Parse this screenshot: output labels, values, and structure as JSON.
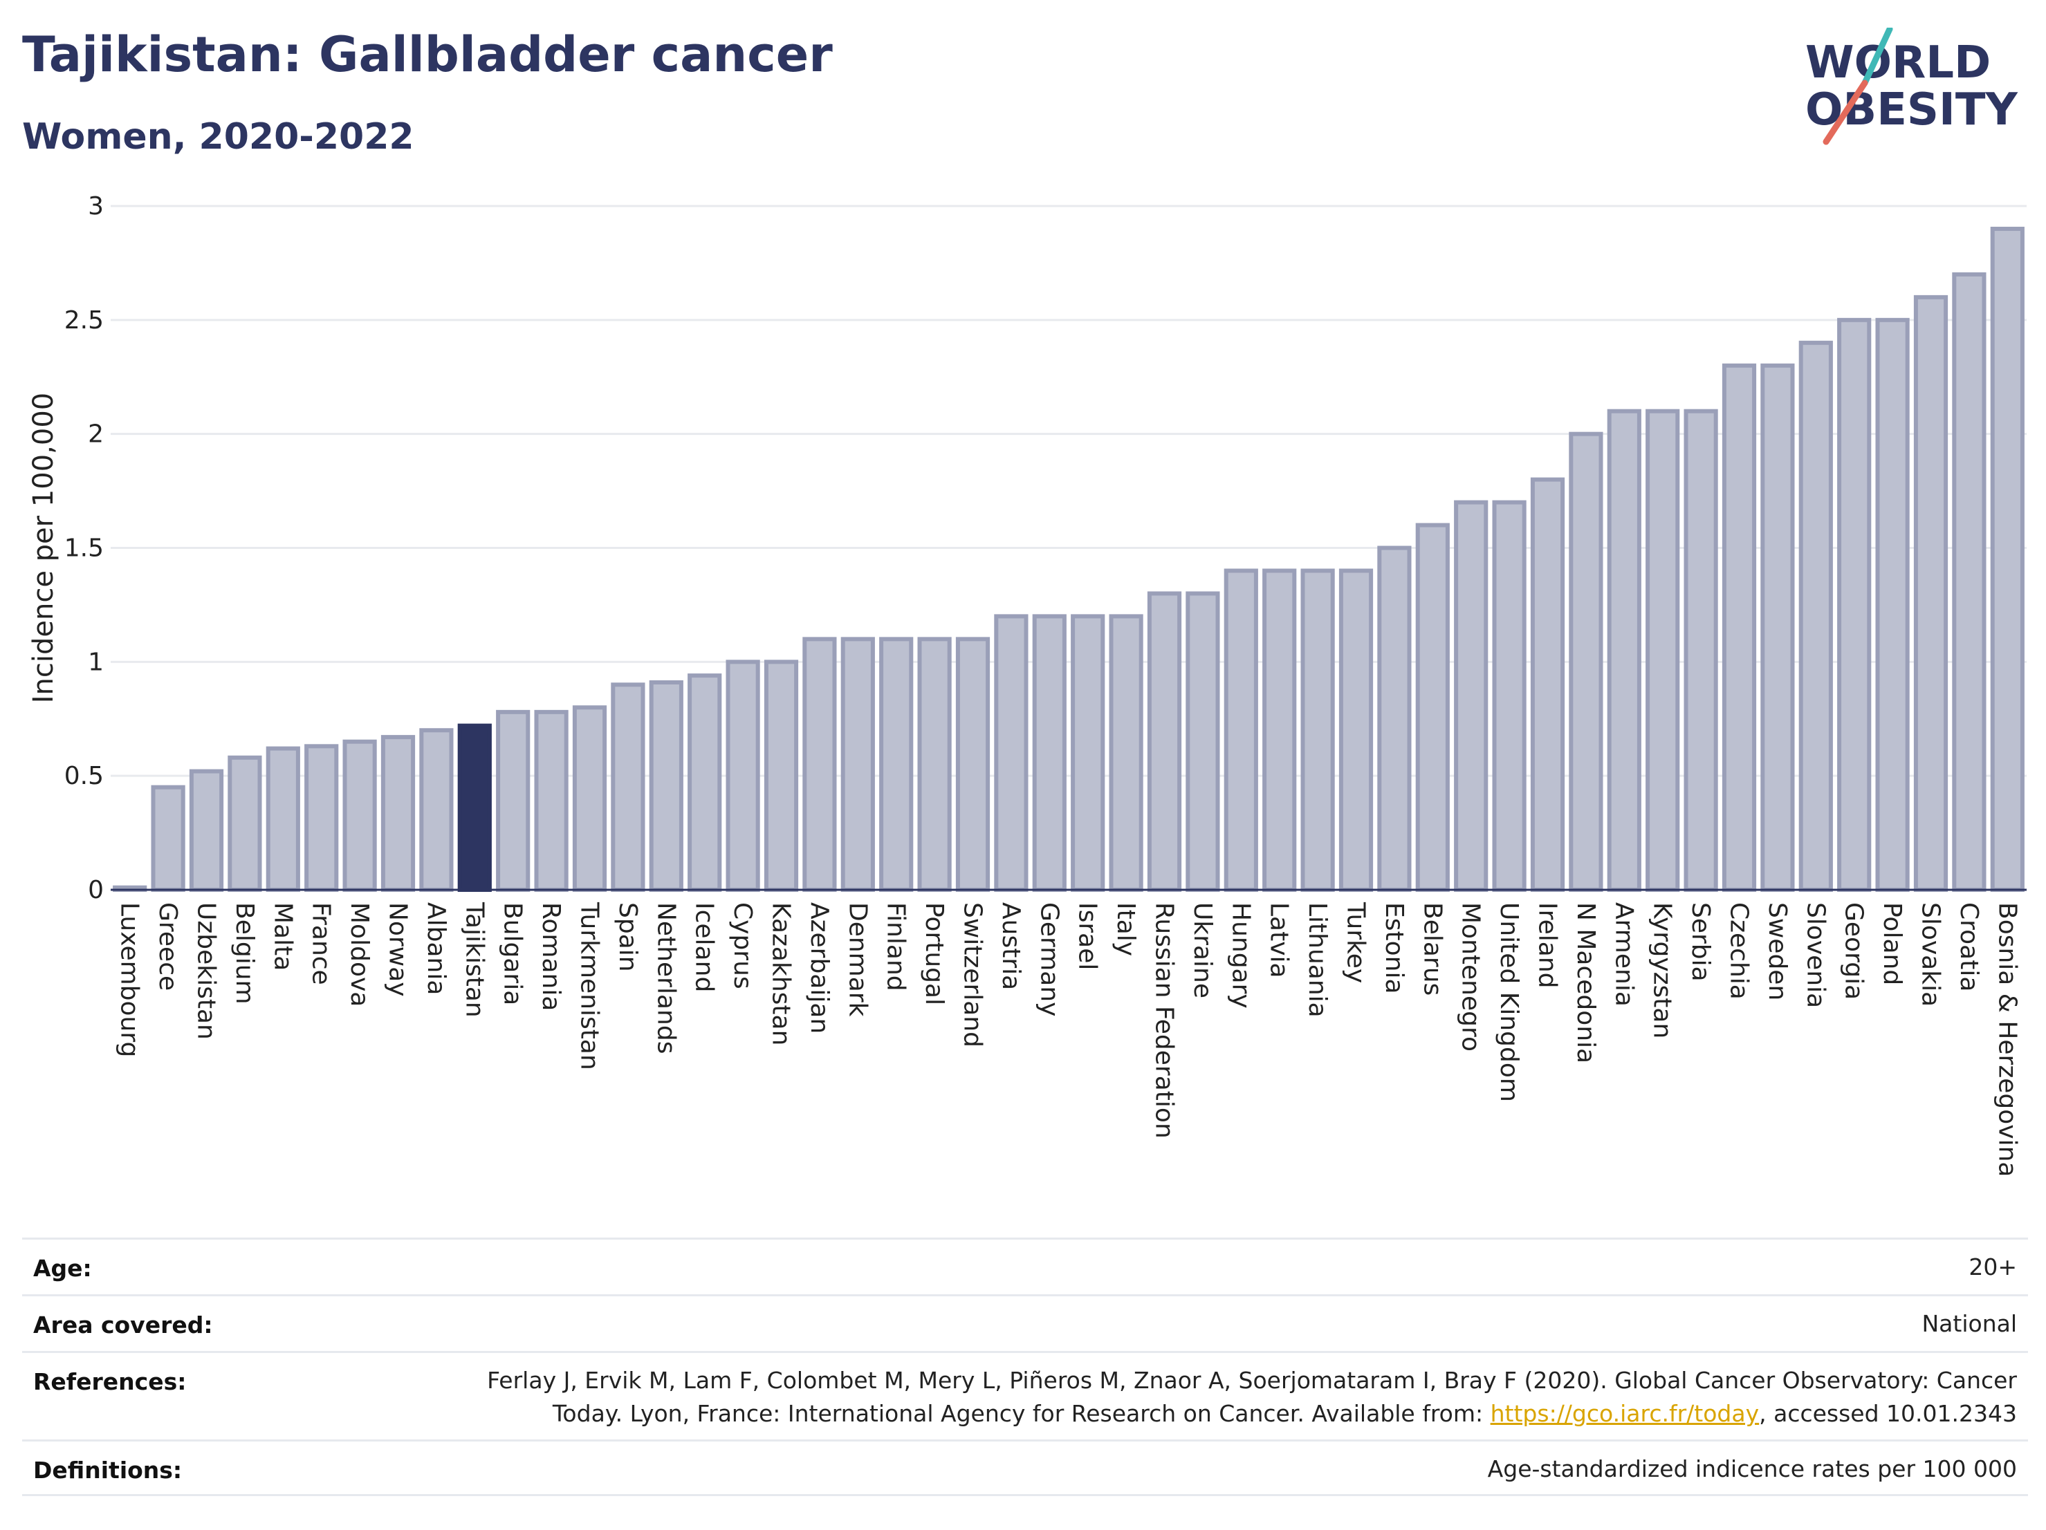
{
  "header": {
    "title": "Tajikistan: Gallbladder cancer",
    "subtitle": "Women, 2020-2022",
    "logo_line1": "WORLD",
    "logo_line2": "OBESITY"
  },
  "colors": {
    "bar": "#bcc0d0",
    "bar_stroke": "#9a9fb8",
    "highlight": "#2d3561",
    "title": "#2d3561",
    "logo_teal": "#3fb8b6",
    "logo_red": "#e36a5b"
  },
  "chart_data": {
    "type": "bar",
    "title": "Tajikistan: Gallbladder cancer",
    "subtitle": "Women, 2020-2022",
    "xlabel": "",
    "ylabel": "Incidence per 100,000",
    "ylim": [
      0,
      3
    ],
    "yticks": [
      0,
      0.5,
      1,
      1.5,
      2,
      2.5,
      3
    ],
    "ytick_labels": [
      "0",
      "0.5",
      "1",
      "1.5",
      "2",
      "2.5",
      "3"
    ],
    "grid": true,
    "highlight": "Tajikistan",
    "categories": [
      "Luxembourg",
      "Greece",
      "Uzbekistan",
      "Belgium",
      "Malta",
      "France",
      "Moldova",
      "Norway",
      "Albania",
      "Tajikistan",
      "Bulgaria",
      "Romania",
      "Turkmenistan",
      "Spain",
      "Netherlands",
      "Iceland",
      "Cyprus",
      "Kazakhstan",
      "Azerbaijan",
      "Denmark",
      "Finland",
      "Portugal",
      "Switzerland",
      "Austria",
      "Germany",
      "Israel",
      "Italy",
      "Russian Federation",
      "Ukraine",
      "Hungary",
      "Latvia",
      "Lithuania",
      "Turkey",
      "Estonia",
      "Belarus",
      "Montenegro",
      "United Kingdom",
      "Ireland",
      "N Macedonia",
      "Armenia",
      "Kyrgyzstan",
      "Serbia",
      "Czechia",
      "Sweden",
      "Slovenia",
      "Georgia",
      "Poland",
      "Slovakia",
      "Croatia",
      "Bosnia & Herzegovina"
    ],
    "values": [
      0.01,
      0.45,
      0.52,
      0.58,
      0.62,
      0.63,
      0.65,
      0.67,
      0.7,
      0.72,
      0.78,
      0.78,
      0.8,
      0.9,
      0.91,
      0.94,
      1.0,
      1.0,
      1.1,
      1.1,
      1.1,
      1.1,
      1.1,
      1.2,
      1.2,
      1.2,
      1.2,
      1.3,
      1.3,
      1.4,
      1.4,
      1.4,
      1.4,
      1.5,
      1.6,
      1.7,
      1.7,
      1.8,
      2.0,
      2.1,
      2.1,
      2.1,
      2.3,
      2.3,
      2.4,
      2.5,
      2.5,
      2.6,
      2.7,
      2.9
    ]
  },
  "info": {
    "age_label": "Age:",
    "age_value": "20+",
    "area_label": "Area covered:",
    "area_value": "National",
    "references_label": "References:",
    "references_line1": "Ferlay J, Ervik M, Lam F, Colombet M, Mery L, Piñeros M, Znaor A, Soerjomataram I, Bray F (2020). Global Cancer Observatory: Cancer",
    "references_line2_pre": "Today. Lyon, France: International Agency for Research on Cancer. Available from: ",
    "references_link": "https://gco.iarc.fr/today",
    "references_line2_post": ", accessed 10.01.2343",
    "definitions_label": "Definitions:",
    "definitions_value": "Age-standardized indicence rates per 100 000"
  }
}
